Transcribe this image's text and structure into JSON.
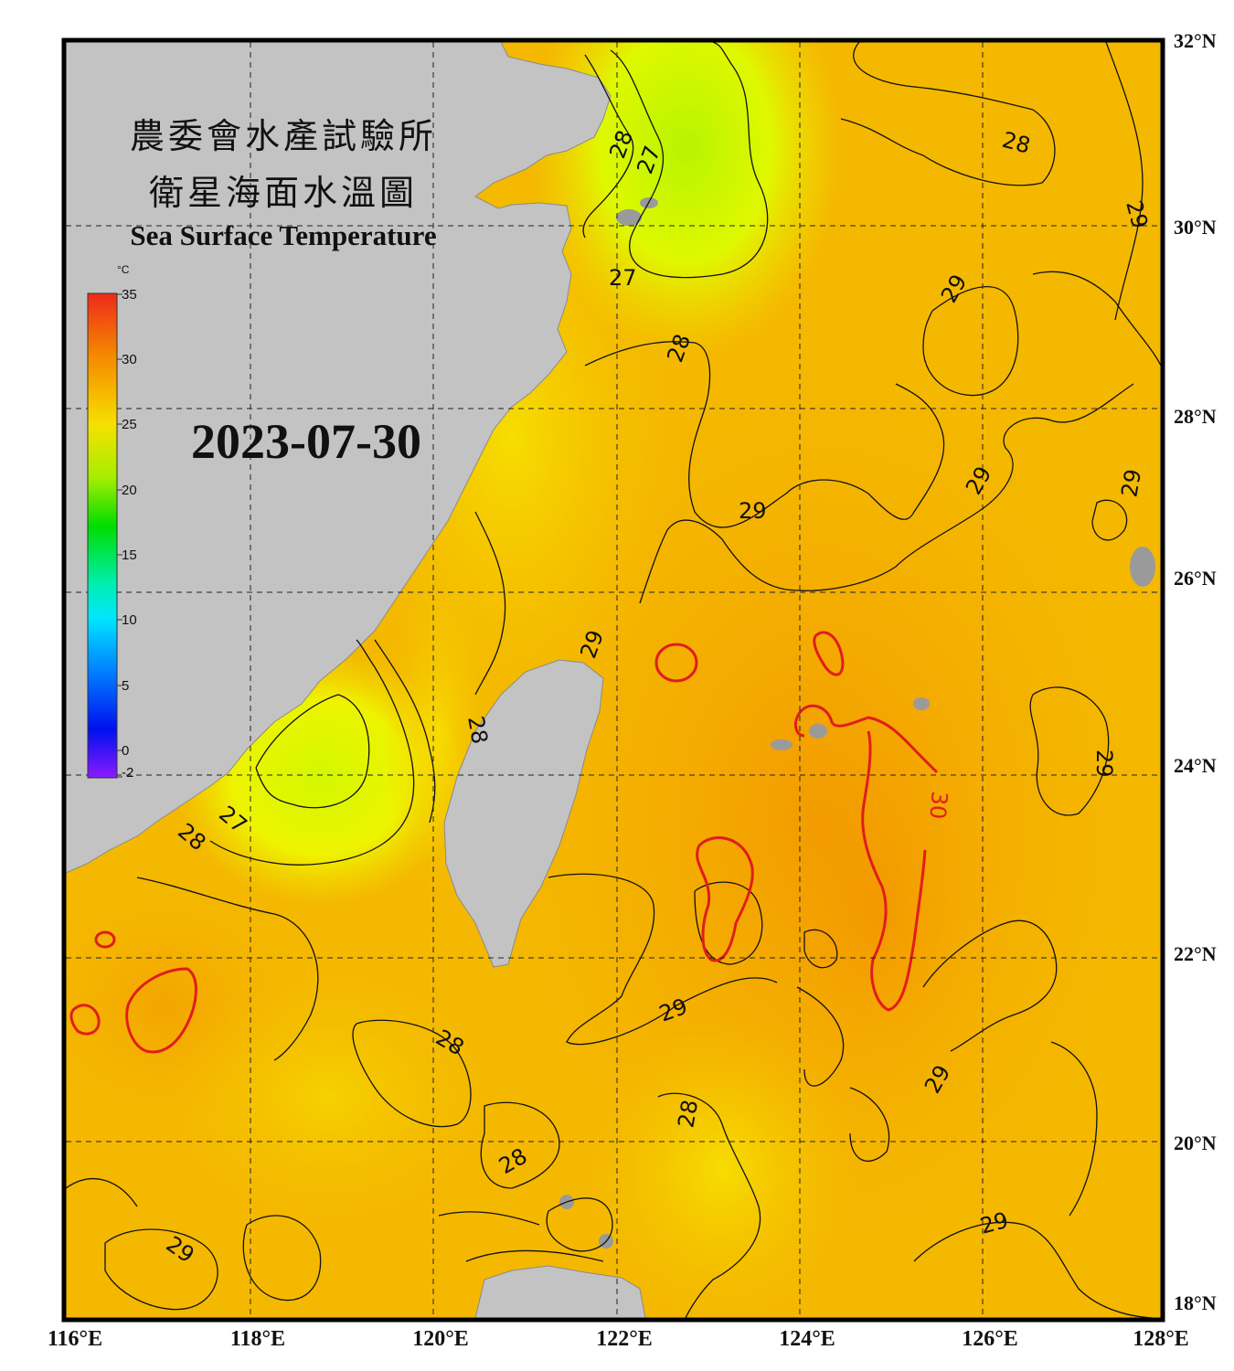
{
  "title": {
    "line1": "農委會水產試驗所",
    "line2": "衛星海面水溫圖",
    "english": "Sea Surface Temperature"
  },
  "date": "2023-07-30",
  "colorbar": {
    "unit": "°C",
    "ticks": [
      "35",
      "30",
      "25",
      "20",
      "15",
      "10",
      "5",
      "0",
      "-2"
    ]
  },
  "axes": {
    "lat_labels": [
      "32°N",
      "30°N",
      "28°N",
      "26°N",
      "24°N",
      "22°N",
      "20°N",
      "18°N"
    ],
    "lon_labels": [
      "116°E",
      "118°E",
      "120°E",
      "122°E",
      "124°E",
      "126°E",
      "128°E"
    ]
  },
  "contour_labels": {
    "c1": "28",
    "c2": "27",
    "c3": "28",
    "c4": "29",
    "c5": "27",
    "c6": "29",
    "c7": "28",
    "c8": "29",
    "c9": "29",
    "c10": "29",
    "c11": "29",
    "c12": "28",
    "c13": "30",
    "c14": "29",
    "c15": "27",
    "c16": "28",
    "c17": "29",
    "c18": "28",
    "c19": "29",
    "c20": "28",
    "c21": "28",
    "c22": "29",
    "c23": "29"
  },
  "colors": {
    "land": "#c3c3c3",
    "sea_warm": "#f2a900",
    "sea_cool": "#e9ff00",
    "contour_30": "#e11d1d",
    "frame": "#000000"
  }
}
